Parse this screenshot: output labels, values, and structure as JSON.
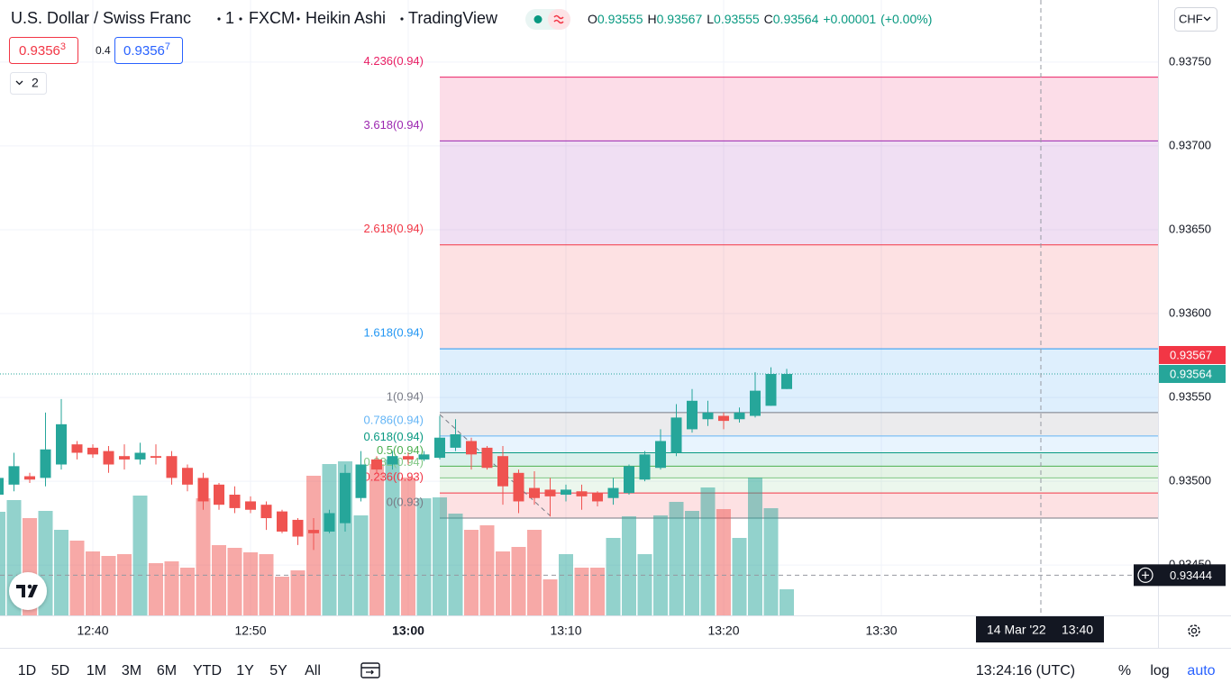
{
  "header": {
    "symbol": "U.S. Dollar / Swiss Franc",
    "interval": "1",
    "exchange": "FXCM",
    "style": "Heikin Ashi",
    "source": "TradingView",
    "ohlc_letters": [
      "O",
      "H",
      "L",
      "C"
    ],
    "change": "+0.00001",
    "change_pct": "(+0.00%)",
    "currency": "CHF"
  },
  "quote": {
    "bid": {
      "main": "0.9356",
      "sup": "3"
    },
    "spread": "0.4",
    "ask": {
      "main": "0.9356",
      "sup": "7"
    },
    "indicators_count": "2"
  },
  "chart_data": {
    "type": "candlestick",
    "up_color": "#26a69a",
    "down_color": "#ef5350",
    "grid": true,
    "categories": [
      null,
      null,
      null,
      null,
      null,
      null,
      "12:40",
      null,
      null,
      null,
      null,
      null,
      null,
      null,
      null,
      null,
      "12:50",
      null,
      null,
      null,
      null,
      null,
      null,
      null,
      null,
      null,
      "13:00",
      null,
      null,
      null,
      null,
      null,
      null,
      null,
      null,
      null,
      "13:10",
      null,
      null,
      null,
      null,
      null,
      null,
      null,
      null,
      null,
      "13:20",
      null,
      null,
      null,
      null,
      null,
      null,
      null,
      null,
      null,
      "13:30"
    ],
    "open": [
      0.93492,
      0.93498,
      0.93503,
      0.93502,
      0.9351,
      0.93522,
      0.9352,
      0.93518,
      0.93515,
      0.93513,
      0.93515,
      0.93515,
      0.93508,
      0.93502,
      0.93498,
      0.93492,
      0.93488,
      0.93486,
      0.93482,
      0.93477,
      0.93471,
      0.9347,
      0.93475,
      0.9349,
      0.93513,
      0.9351,
      0.93515,
      0.93513,
      0.93514,
      0.9352,
      0.93524,
      0.9352,
      0.93515,
      0.93505,
      0.93496,
      0.93495,
      0.93492,
      0.93494,
      0.93493,
      0.9349,
      0.93493,
      0.93501,
      0.93508,
      0.93517,
      0.93531,
      0.93537,
      0.93539,
      0.93537,
      0.93539,
      0.93545,
      0.93555,
      null,
      null,
      null,
      null,
      null,
      null
    ],
    "high": [
      0.93505,
      0.93517,
      0.93505,
      0.93541,
      0.93549,
      0.93524,
      0.93522,
      0.93521,
      0.93522,
      0.93523,
      0.93522,
      0.93518,
      0.9351,
      0.93505,
      0.93499,
      0.93497,
      0.93491,
      0.93488,
      0.93483,
      0.93478,
      0.93478,
      0.93483,
      0.9351,
      0.93518,
      0.93515,
      0.93518,
      0.93517,
      0.93518,
      0.93539,
      0.93537,
      0.93526,
      0.93521,
      0.93521,
      0.93507,
      0.93506,
      0.93502,
      0.93498,
      0.93498,
      0.93494,
      0.93502,
      0.9351,
      0.93518,
      0.93531,
      0.93546,
      0.93555,
      0.93548,
      0.93541,
      0.93544,
      0.93565,
      0.93568,
      0.93567,
      null,
      null,
      null,
      null,
      null,
      null
    ],
    "low": [
      0.93491,
      0.93494,
      0.93499,
      0.93497,
      0.93507,
      0.93513,
      0.93514,
      0.93505,
      0.93507,
      0.9351,
      0.9351,
      0.93498,
      0.93494,
      0.93483,
      0.93483,
      0.93481,
      0.93481,
      0.93471,
      0.93469,
      0.93462,
      0.93459,
      0.93469,
      0.9347,
      0.93488,
      0.93505,
      0.93507,
      0.9351,
      0.93512,
      0.93513,
      0.93518,
      0.93507,
      0.93507,
      0.93486,
      0.93481,
      0.93486,
      0.93479,
      0.93488,
      0.93483,
      0.93485,
      0.93486,
      0.93492,
      0.935,
      0.93507,
      0.93515,
      0.93529,
      0.93533,
      0.93531,
      0.93535,
      0.93538,
      0.93545,
      0.93555,
      null,
      null,
      null,
      null,
      null,
      null
    ],
    "close": [
      0.93502,
      0.93509,
      0.93501,
      0.93519,
      0.93534,
      0.93517,
      0.93516,
      0.9351,
      0.93513,
      0.93517,
      0.93514,
      0.93502,
      0.93498,
      0.93488,
      0.93486,
      0.93484,
      0.93483,
      0.93478,
      0.9347,
      0.93467,
      0.93469,
      0.93481,
      0.93505,
      0.9351,
      0.93507,
      0.93515,
      0.93513,
      0.93516,
      0.93526,
      0.93528,
      0.93516,
      0.93508,
      0.93497,
      0.93488,
      0.9349,
      0.93491,
      0.93495,
      0.93491,
      0.93488,
      0.93496,
      0.93509,
      0.93516,
      0.93524,
      0.93538,
      0.93548,
      0.93541,
      0.93536,
      0.93541,
      0.93554,
      0.93564,
      0.93564,
      null,
      null,
      null,
      null,
      null,
      null
    ],
    "volume": [
      115,
      128,
      108,
      116,
      95,
      83,
      71,
      66,
      68,
      133,
      58,
      60,
      53,
      130,
      78,
      75,
      70,
      68,
      43,
      50,
      155,
      168,
      171,
      111,
      168,
      173,
      153,
      130,
      131,
      113,
      95,
      100,
      71,
      76,
      95,
      40,
      68,
      53,
      53,
      86,
      110,
      68,
      111,
      126,
      116,
      142,
      118,
      86,
      153,
      119,
      29,
      null,
      null,
      null,
      null,
      null,
      null
    ],
    "ylim": [
      0.9342,
      0.93787
    ],
    "yticks": [
      {
        "value": 0.9375,
        "label": "0.93750"
      },
      {
        "value": 0.937,
        "label": "0.93700"
      },
      {
        "value": 0.9365,
        "label": "0.93650"
      },
      {
        "value": 0.936,
        "label": "0.93600"
      },
      {
        "value": 0.9355,
        "label": "0.93550"
      },
      {
        "value": 0.935,
        "label": "0.93500"
      },
      {
        "value": 0.9345,
        "label": "0.93450"
      }
    ],
    "fib_levels": [
      {
        "label": "4.236(0.94)",
        "price": 0.93741,
        "color": "#e91e63"
      },
      {
        "label": "3.618(0.94)",
        "price": 0.93703,
        "color": "#9c27b0"
      },
      {
        "label": "2.618(0.94)",
        "price": 0.93641,
        "color": "#f23645"
      },
      {
        "label": "1.618(0.94)",
        "price": 0.93579,
        "color": "#2196f3"
      },
      {
        "label": "1(0.94)",
        "price": 0.93541,
        "color": "#787b86"
      },
      {
        "label": "0.786(0.94)",
        "price": 0.93527,
        "color": "#64b5f6"
      },
      {
        "label": "0.618(0.94)",
        "price": 0.93517,
        "color": "#089981"
      },
      {
        "label": "0.5(0.94)",
        "price": 0.93509,
        "color": "#4caf50"
      },
      {
        "label": "0.382(0.94)",
        "price": 0.93502,
        "color": "#81c784"
      },
      {
        "label": "0.236(0.93)",
        "price": 0.93493,
        "color": "#f23645"
      },
      {
        "label": "0(0.93)",
        "price": 0.93478,
        "color": "#787b86"
      }
    ],
    "ask_price": 0.93567,
    "last_price": 0.93564,
    "crosshair": {
      "price": 0.93444,
      "date": "14 Mar '22",
      "time": "13:40"
    }
  },
  "toolbar": {
    "ranges": [
      "1D",
      "5D",
      "1M",
      "3M",
      "6M",
      "YTD",
      "1Y",
      "5Y",
      "All"
    ],
    "clock": "13:24:16 (UTC)",
    "percent": "%",
    "log": "log",
    "auto": "auto"
  }
}
